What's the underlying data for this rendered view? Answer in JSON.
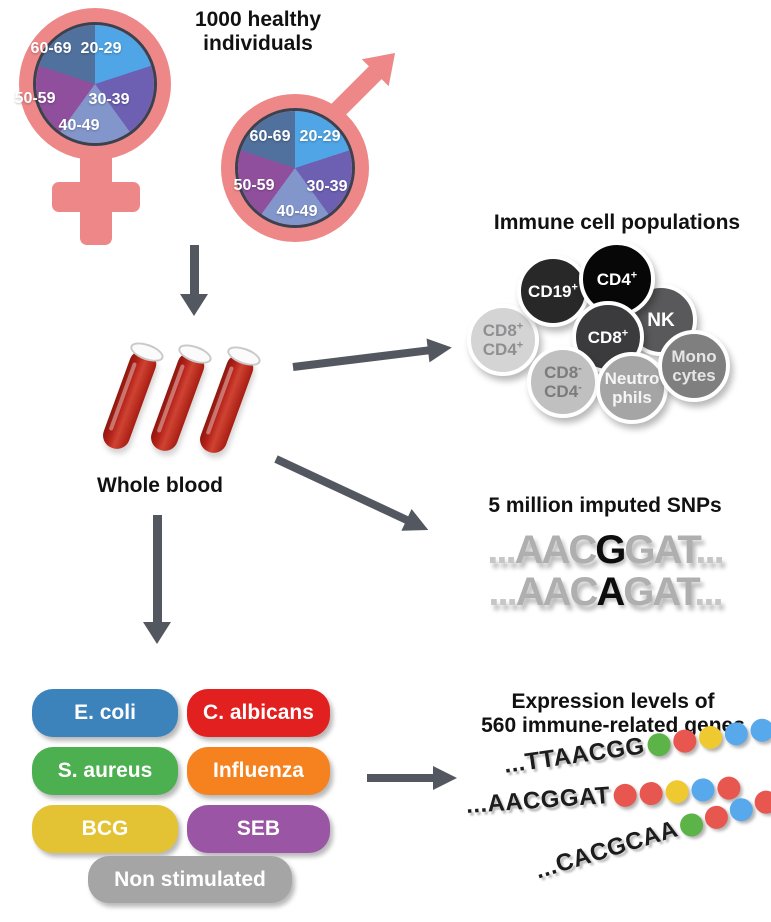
{
  "cohort": {
    "title_line1": "1000 healthy",
    "title_line2": "individuals",
    "age_groups": [
      "20-29",
      "30-39",
      "40-49",
      "50-59",
      "60-69"
    ],
    "slice_colors": [
      "#4FA5E5",
      "#6D60B2",
      "#8296CC",
      "#8F4F9D",
      "#50719D"
    ],
    "symbol_color": "#EE8788",
    "ring_color": "#3A4250"
  },
  "whole_blood": {
    "label": "Whole blood"
  },
  "immune": {
    "title": "Immune cell populations",
    "cells": [
      {
        "l1": "CD8",
        "s1": "+",
        "l2": "CD4",
        "s2": "+",
        "bg": "#D4D4D4",
        "fg": "#8F8F91"
      },
      {
        "l1": "CD19",
        "s1": "+",
        "bg": "#282828",
        "fg": "#FFFFFF"
      },
      {
        "l1": "NK",
        "s1": "",
        "bg": "#59595B",
        "fg": "#FFFFFF"
      },
      {
        "l1": "CD4",
        "s1": "+",
        "bg": "#070707",
        "fg": "#FFFFFF"
      },
      {
        "l1": "CD8",
        "s1": "+",
        "bg": "#3B3B3D",
        "fg": "#FFFFFF"
      },
      {
        "l1": "CD8",
        "s1": "-",
        "l2": "CD4",
        "s2": "-",
        "bg": "#C0C0C0",
        "fg": "#7B7B7D"
      },
      {
        "l1": "Neutro",
        "l2": "phils",
        "bg": "#A5A5A5",
        "fg": "#F5F5F5"
      },
      {
        "l1": "Mono",
        "l2": "cytes",
        "bg": "#7F7F7F",
        "fg": "#E5E5E5"
      }
    ]
  },
  "snps": {
    "title": "5 million imputed SNPs",
    "rows": [
      {
        "pre": "...",
        "left": "AAC",
        "variant": "G",
        "right": "GAT",
        "post": "..."
      },
      {
        "pre": "...",
        "left": "AAC",
        "variant": "A",
        "right": "GAT",
        "post": "..."
      }
    ]
  },
  "stimuli": {
    "pills": [
      {
        "label": "E. coli",
        "color": "#3C82BB"
      },
      {
        "label": "C. albicans",
        "color": "#E2201F"
      },
      {
        "label": "S. aureus",
        "color": "#4CB050"
      },
      {
        "label": "Influenza",
        "color": "#F6821F"
      },
      {
        "label": "BCG",
        "color": "#E3C233"
      },
      {
        "label": "SEB",
        "color": "#9A56A5"
      },
      {
        "label": "Non stimulated",
        "color": "#A5A5A5"
      }
    ]
  },
  "expression": {
    "title_line1": "Expression levels of",
    "title_line2": "560 immune-related genes",
    "dot_palette": {
      "green": "#5CB347",
      "red": "#E8574F",
      "yellow": "#EFC930",
      "blue": "#58A8EC"
    },
    "rows": [
      {
        "seq": "...TTAACGG",
        "dots": [
          "green",
          "red",
          "yellow",
          "blue",
          "blue"
        ]
      },
      {
        "seq": "...AACGGAT",
        "dots": [
          "red",
          "red",
          "yellow",
          "blue",
          "red"
        ]
      },
      {
        "seq": "...CACGCAA",
        "dots": [
          "green",
          "red",
          "blue",
          "red",
          "red"
        ]
      }
    ]
  },
  "arrow_color": "#53575F"
}
